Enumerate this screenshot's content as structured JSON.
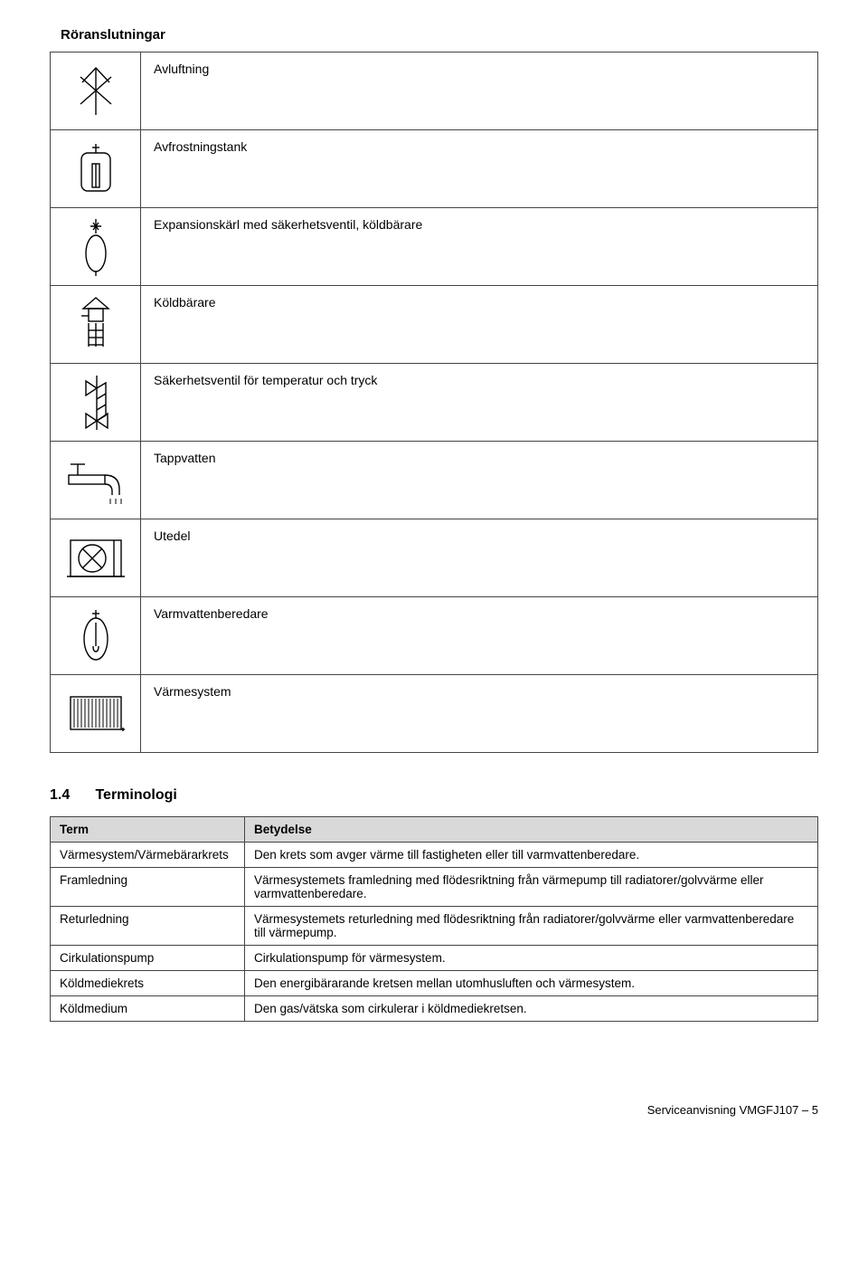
{
  "colors": {
    "ink": "#000000",
    "border": "#444444",
    "th_bg": "#d9d9d9"
  },
  "typography": {
    "body_pt": 14,
    "heading_pt": 15,
    "section_pt": 16,
    "table_pt": 13.5
  },
  "headings": {
    "symbol_table_title": "Röranslutningar",
    "section_number": "1.4",
    "section_title": "Terminologi"
  },
  "symbols": [
    {
      "name": "Avluftning",
      "icon": "vent"
    },
    {
      "name": "Avfrostningstank",
      "icon": "defrost-tank"
    },
    {
      "name": "Expansionskärl med säkerhetsventil, köldbärare",
      "icon": "expansion-vessel"
    },
    {
      "name": "Köldbärare",
      "icon": "brine"
    },
    {
      "name": "Säkerhetsventil för temperatur och tryck",
      "icon": "safety-valve"
    },
    {
      "name": "Tappvatten",
      "icon": "tap-water"
    },
    {
      "name": "Utedel",
      "icon": "outdoor-unit"
    },
    {
      "name": "Varmvattenberedare",
      "icon": "water-heater"
    },
    {
      "name": "Värmesystem",
      "icon": "heating-system"
    }
  ],
  "term_table": {
    "columns": [
      "Term",
      "Betydelse"
    ],
    "rows": [
      [
        "Värmesystem/Värmebärarkrets",
        "Den krets som avger värme till fastigheten eller till varmvattenberedare."
      ],
      [
        "Framledning",
        "Värmesystemets framledning med flödesriktning från värmepump till radiatorer/golvvärme eller varmvattenberedare."
      ],
      [
        "Returledning",
        "Värmesystemets returledning med flödesriktning från radiatorer/golvvärme eller varmvattenberedare till värmepump."
      ],
      [
        "Cirkulationspump",
        "Cirkulationspump för värmesystem."
      ],
      [
        "Köldmediekrets",
        "Den energibärarande kretsen mellan utomhusluften och värmesystem."
      ],
      [
        "Köldmedium",
        "Den gas/vätska som cirkulerar i köldmediekretsen."
      ]
    ]
  },
  "footer": "Serviceanvisning VMGFJ107 – 5"
}
